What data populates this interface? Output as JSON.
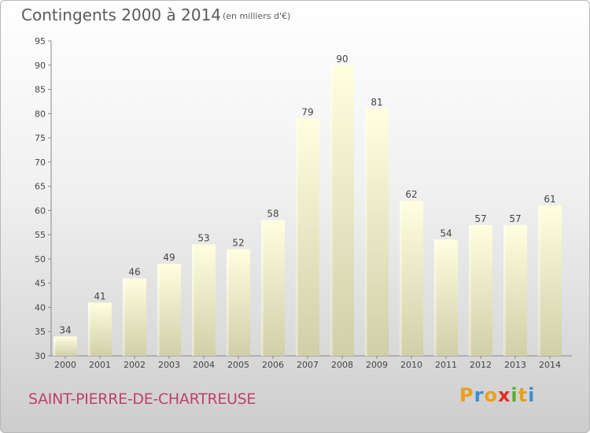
{
  "header": {
    "title": "Contingents 2000 à 2014",
    "subtitle": "(en milliers d'€)"
  },
  "footer": {
    "place": "SAINT-PIERRE-DE-CHARTREUSE"
  },
  "logo": {
    "letters": [
      "P",
      "r",
      "o",
      "x",
      "i",
      "t",
      "i"
    ],
    "colors": [
      "#e8a020",
      "#3a8fd0",
      "#e8a020",
      "#e03020",
      "#58b030",
      "#e8a020",
      "#3a8fd0"
    ]
  },
  "chart_data": {
    "type": "bar",
    "title": "Contingents 2000 à 2014",
    "subtitle": "(en milliers d'€)",
    "categories": [
      "2000",
      "2001",
      "2002",
      "2003",
      "2004",
      "2005",
      "2006",
      "2007",
      "2008",
      "2009",
      "2010",
      "2011",
      "2012",
      "2013",
      "2014"
    ],
    "values": [
      34,
      41,
      46,
      49,
      53,
      52,
      58,
      79,
      90,
      81,
      62,
      54,
      57,
      57,
      61
    ],
    "ylim": [
      30,
      95
    ],
    "yticks": [
      30,
      35,
      40,
      45,
      50,
      55,
      60,
      65,
      70,
      75,
      80,
      85,
      90,
      95
    ],
    "grid": false,
    "bar_color_top": "#ffffe0",
    "bar_color_bottom": "#cfcfa8"
  }
}
